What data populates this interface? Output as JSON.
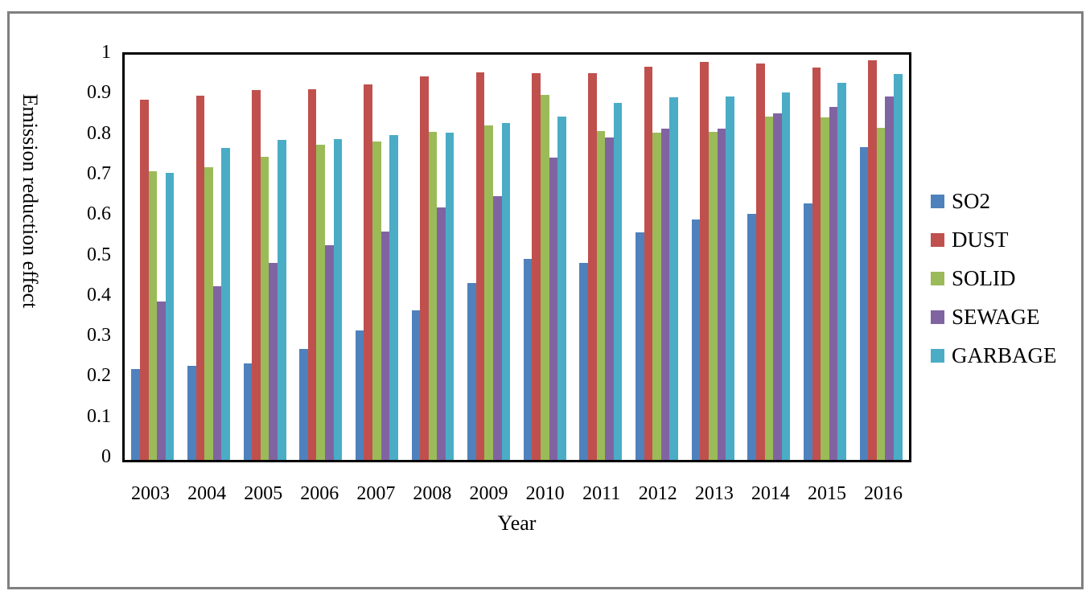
{
  "figure": {
    "background_color": "#ffffff",
    "outer_border_color": "#808080",
    "plot_border_color": "#000000"
  },
  "chart_data": {
    "type": "bar",
    "title": "",
    "xlabel": "Year",
    "ylabel": "Emission reduction effect",
    "ylim": [
      0,
      1
    ],
    "grid": false,
    "legend_position": "right",
    "yticks": [
      {
        "value": 0,
        "label": "0"
      },
      {
        "value": 0.1,
        "label": "0.1"
      },
      {
        "value": 0.2,
        "label": "0.2"
      },
      {
        "value": 0.3,
        "label": "0.3"
      },
      {
        "value": 0.4,
        "label": "0.4"
      },
      {
        "value": 0.5,
        "label": "0.5"
      },
      {
        "value": 0.6,
        "label": "0.6"
      },
      {
        "value": 0.7,
        "label": "0.7"
      },
      {
        "value": 0.8,
        "label": "0.8"
      },
      {
        "value": 0.9,
        "label": "0.9"
      },
      {
        "value": 1,
        "label": "1"
      }
    ],
    "categories": [
      "2003",
      "2004",
      "2005",
      "2006",
      "2007",
      "2008",
      "2009",
      "2010",
      "2011",
      "2012",
      "2013",
      "2014",
      "2015",
      "2016"
    ],
    "series": [
      {
        "name": "SO2",
        "color": "#4F81BD",
        "values": [
          0.225,
          0.232,
          0.238,
          0.273,
          0.32,
          0.37,
          0.436,
          0.496,
          0.487,
          0.562,
          0.593,
          0.607,
          0.632,
          0.771
        ]
      },
      {
        "name": "DUST",
        "color": "#C0504D",
        "values": [
          0.889,
          0.899,
          0.913,
          0.915,
          0.926,
          0.947,
          0.956,
          0.955,
          0.955,
          0.971,
          0.982,
          0.979,
          0.968,
          0.987
        ]
      },
      {
        "name": "SOLID",
        "color": "#9BBB59",
        "values": [
          0.712,
          0.723,
          0.749,
          0.778,
          0.786,
          0.81,
          0.825,
          0.9,
          0.812,
          0.808,
          0.81,
          0.847,
          0.845,
          0.82
        ]
      },
      {
        "name": "SEWAGE",
        "color": "#8064A2",
        "values": [
          0.391,
          0.428,
          0.486,
          0.53,
          0.564,
          0.624,
          0.651,
          0.747,
          0.796,
          0.817,
          0.818,
          0.855,
          0.872,
          0.896
        ]
      },
      {
        "name": "GARBAGE",
        "color": "#4BACC6",
        "values": [
          0.708,
          0.77,
          0.789,
          0.791,
          0.801,
          0.807,
          0.831,
          0.848,
          0.881,
          0.894,
          0.896,
          0.907,
          0.93,
          0.953
        ]
      }
    ]
  }
}
